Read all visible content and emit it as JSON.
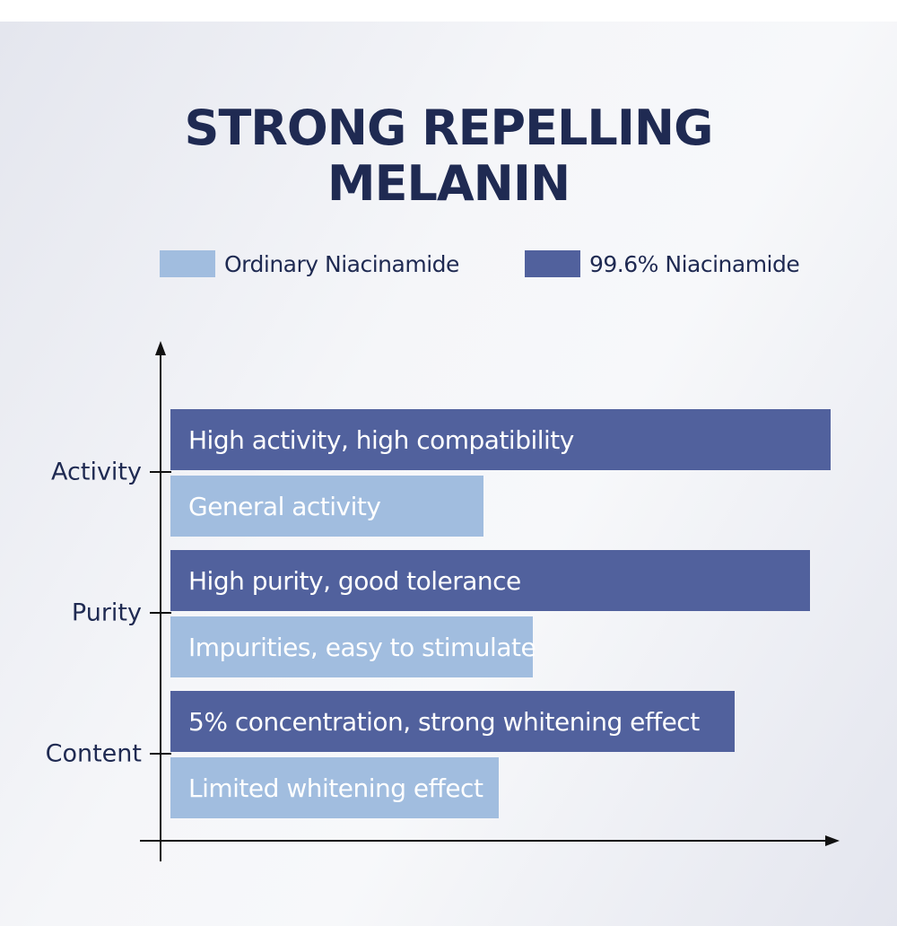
{
  "chart_data": {
    "type": "bar",
    "orientation": "horizontal",
    "title": "STRONG REPELLING MELANIN",
    "categories": [
      "Activity",
      "Purity",
      "Content"
    ],
    "series": [
      {
        "name": "99.6% Niacinamide",
        "color": "#51619d",
        "values": [
          98.7,
          95.6,
          84.5
        ],
        "labels": [
          "High activity, high compatibility",
          "High purity, good tolerance",
          "5% concentration, strong whitening effect"
        ]
      },
      {
        "name": "Ordinary Niacinamide",
        "color": "#a1bddf",
        "values": [
          47.6,
          54.8,
          49.8
        ],
        "labels": [
          "General activity",
          "Impurities, easy to stimulate",
          "Limited whitening effect"
        ]
      }
    ],
    "xlim": [
      0,
      100
    ],
    "grid": false,
    "legend_position": "top"
  },
  "title_lines": [
    "STRONG REPELLING",
    "MELANIN"
  ],
  "legend": [
    {
      "label": "Ordinary Niacinamide",
      "color": "#a1bddf"
    },
    {
      "label": "99.6% Niacinamide",
      "color": "#51619d"
    }
  ]
}
